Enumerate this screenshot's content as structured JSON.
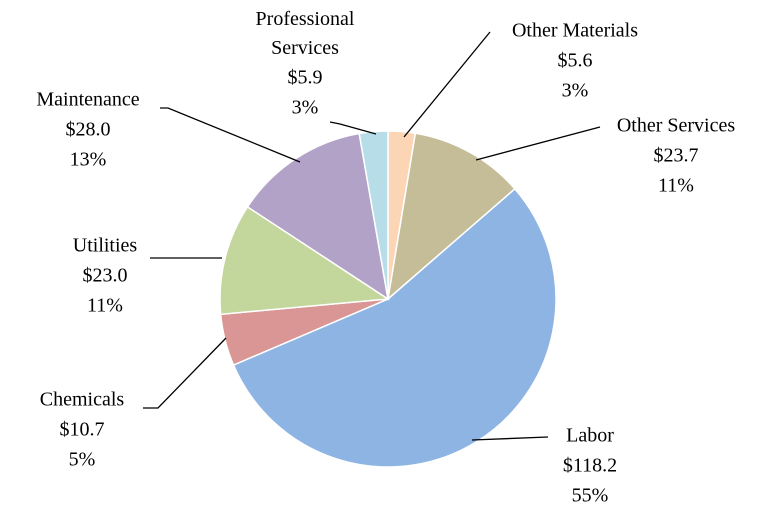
{
  "chart_data": {
    "type": "pie",
    "categories": [
      "Other Materials",
      "Other Services",
      "Labor",
      "Chemicals",
      "Utilities",
      "Maintenance",
      "Professional Services"
    ],
    "values": [
      5.6,
      23.7,
      118.2,
      10.7,
      23.0,
      28.0,
      5.9
    ],
    "value_labels": [
      "$5.6",
      "$23.7",
      "$118.2",
      "$10.7",
      "$23.0",
      "$28.0",
      "$5.9"
    ],
    "percent_labels": [
      "3%",
      "11%",
      "55%",
      "5%",
      "11%",
      "13%",
      "3%"
    ],
    "colors": [
      "#fcd5b5",
      "#c4bd97",
      "#8eb4e3",
      "#d99694",
      "#c3d69b",
      "#b3a2c7",
      "#b7dee8"
    ]
  }
}
